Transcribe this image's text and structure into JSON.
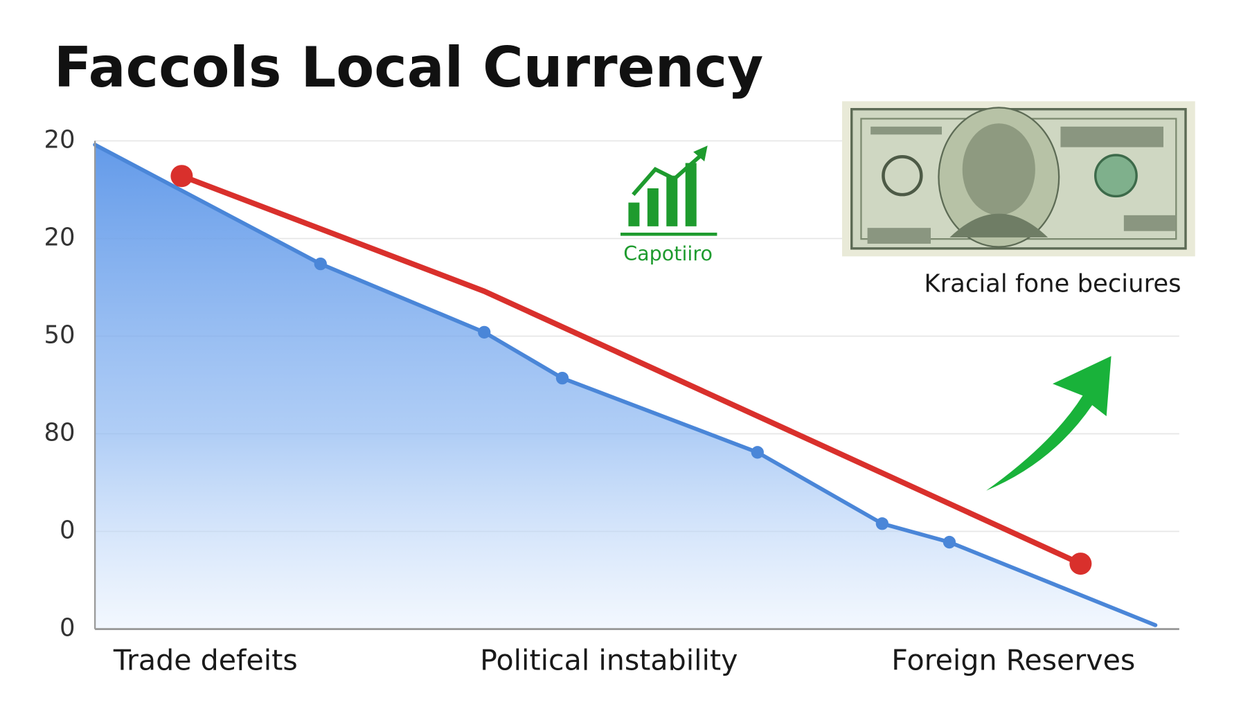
{
  "chart_data": {
    "type": "area-line",
    "title": "Faccols Local Currency",
    "annotations": [
      "Capotiiro",
      "Kracial fone beciures"
    ],
    "xlim": [
      0,
      100
    ],
    "xticks": [
      {
        "value": 10.2,
        "label": "Trade defeits"
      },
      {
        "value": 47.4,
        "label": "Political instability"
      },
      {
        "value": 84.7,
        "label": "Foreign Reserves"
      }
    ],
    "ylim": [
      0,
      5
    ],
    "yticks": [
      0,
      {
        "value": 1,
        "label": "0"
      },
      {
        "value": 2,
        "label": "80"
      },
      {
        "value": 3,
        "label": "50"
      },
      {
        "value": 4,
        "label": "20"
      },
      {
        "value": 5,
        "label": "20"
      }
    ],
    "grid": true,
    "series": [
      {
        "color": "#4a86d8",
        "fill": true,
        "markers": "inner",
        "x": [
          0,
          20.8,
          35.9,
          43.1,
          61.1,
          72.6,
          78.8,
          97.8
        ],
        "values": [
          4.96,
          3.74,
          3.04,
          2.57,
          1.81,
          1.08,
          0.89,
          0.04
        ]
      },
      {
        "color": "#d9302c",
        "fill": false,
        "markers": "ends",
        "x": [
          8.0,
          35.9,
          90.9
        ],
        "values": [
          4.64,
          3.46,
          0.67
        ]
      }
    ]
  }
}
